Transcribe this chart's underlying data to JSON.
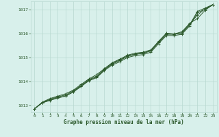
{
  "title": "Graphe pression niveau de la mer (hPa)",
  "background_color": "#d8f0eb",
  "plot_bg_color": "#d8f0eb",
  "grid_color": "#b8d8d0",
  "line_color": "#2d5a2d",
  "marker_color": "#2d5a2d",
  "xlim": [
    -0.5,
    23.5
  ],
  "ylim": [
    1012.7,
    1017.35
  ],
  "yticks": [
    1013,
    1014,
    1015,
    1016,
    1017
  ],
  "xticks": [
    0,
    1,
    2,
    3,
    4,
    5,
    6,
    7,
    8,
    9,
    10,
    11,
    12,
    13,
    14,
    15,
    16,
    17,
    18,
    19,
    20,
    21,
    22,
    23
  ],
  "series": [
    [
      1012.85,
      1013.1,
      1013.2,
      1013.3,
      1013.38,
      1013.55,
      1013.78,
      1014.02,
      1014.15,
      1014.45,
      1014.68,
      1014.82,
      1015.0,
      1015.08,
      1015.12,
      1015.22,
      1015.58,
      1015.92,
      1015.92,
      1015.97,
      1016.32,
      1016.88,
      1017.02,
      1017.2
    ],
    [
      1012.85,
      1013.1,
      1013.22,
      1013.32,
      1013.38,
      1013.57,
      1013.8,
      1014.05,
      1014.18,
      1014.48,
      1014.72,
      1014.87,
      1015.05,
      1015.13,
      1015.17,
      1015.27,
      1015.62,
      1015.97,
      1015.97,
      1016.02,
      1016.37,
      1016.93,
      1017.07,
      1017.22
    ],
    [
      1012.85,
      1013.13,
      1013.28,
      1013.38,
      1013.48,
      1013.63,
      1013.87,
      1014.1,
      1014.28,
      1014.53,
      1014.78,
      1014.93,
      1015.1,
      1015.18,
      1015.22,
      1015.32,
      1015.68,
      1016.02,
      1015.98,
      1016.08,
      1016.43,
      1016.63,
      1016.98,
      1017.22
    ],
    [
      1012.85,
      1013.11,
      1013.25,
      1013.35,
      1013.43,
      1013.6,
      1013.83,
      1014.07,
      1014.22,
      1014.5,
      1014.75,
      1014.9,
      1015.07,
      1015.15,
      1015.19,
      1015.29,
      1015.65,
      1015.99,
      1015.99,
      1016.04,
      1016.39,
      1016.78,
      1017.04,
      1017.21
    ]
  ]
}
